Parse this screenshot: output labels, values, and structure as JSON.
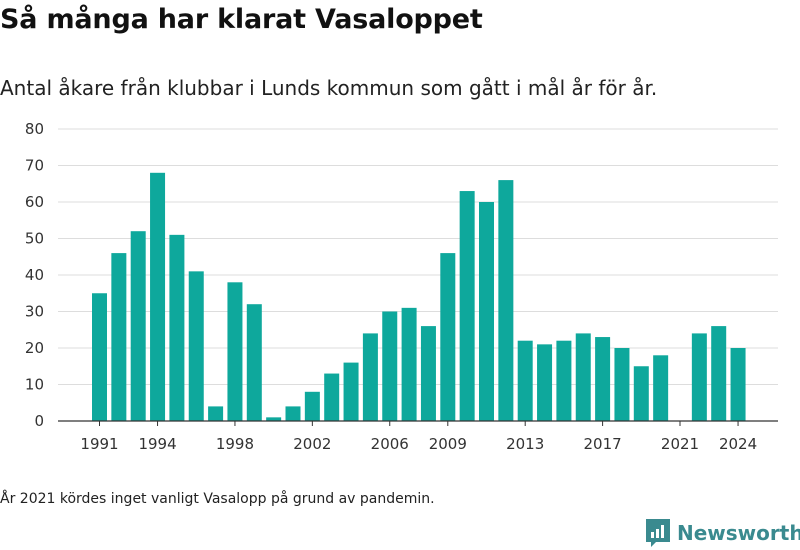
{
  "header": {
    "title": "Så många har klarat Vasaloppet",
    "subtitle": "Antal åkare från klubbar i Lunds kommun som gått i mål år för år."
  },
  "footnote": "År 2021 kördes inget vanligt Vasalopp på grund av pandemin.",
  "brand": {
    "name": "Newsworthy",
    "icon": "newsworthy-logo-icon"
  },
  "colors": {
    "bar": "#0ea89c",
    "grid": "#dddddd",
    "axis": "#333333",
    "brand": "#3a8a8f"
  },
  "chart_data": {
    "type": "bar",
    "categories": [
      1991,
      1992,
      1993,
      1994,
      1995,
      1996,
      1997,
      1998,
      1999,
      2000,
      2001,
      2002,
      2003,
      2004,
      2005,
      2006,
      2007,
      2008,
      2009,
      2010,
      2011,
      2012,
      2013,
      2014,
      2015,
      2016,
      2017,
      2018,
      2019,
      2020,
      2021,
      2022,
      2023,
      2024
    ],
    "values": [
      35,
      46,
      52,
      68,
      51,
      41,
      4,
      38,
      32,
      1,
      4,
      8,
      13,
      16,
      24,
      30,
      31,
      26,
      46,
      63,
      60,
      66,
      22,
      21,
      22,
      24,
      23,
      20,
      15,
      18,
      null,
      24,
      26,
      20
    ],
    "x_tick_labels": [
      "1991",
      "1994",
      "1998",
      "2002",
      "2006",
      "2009",
      "2013",
      "2017",
      "2021",
      "2024"
    ],
    "y_ticks": [
      0,
      10,
      20,
      30,
      40,
      50,
      60,
      70,
      80
    ],
    "ylim": [
      0,
      80
    ],
    "grid": true,
    "legend": "none"
  }
}
